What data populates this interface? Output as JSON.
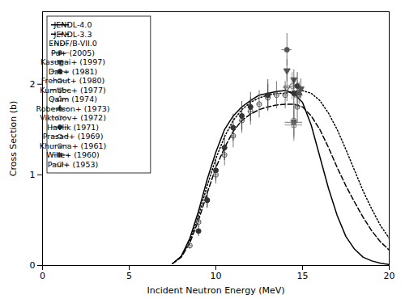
{
  "chart_data": {
    "type": "line",
    "xlabel": "Incident Neutron Energy (MeV)",
    "ylabel": "Cross Section (b)",
    "xlim": [
      0,
      20
    ],
    "ylim": [
      0,
      2.8
    ],
    "xticks": [
      0,
      5,
      10,
      15,
      20
    ],
    "yticks": [
      0,
      1,
      2
    ],
    "grid": false,
    "legend": "upper left",
    "series": [
      {
        "name": "JENDL-4.0",
        "type": "line",
        "color": "black",
        "line_style": "solid",
        "x": [
          7.5,
          8.0,
          8.5,
          9.0,
          9.5,
          10.0,
          10.5,
          11.0,
          11.5,
          12.0,
          12.5,
          13.0,
          13.5,
          14.0,
          14.5,
          15.0,
          15.5,
          16.0,
          16.5,
          17.0,
          17.5,
          18.0,
          18.5,
          19.0,
          19.5,
          20.0
        ],
        "values": [
          0.02,
          0.1,
          0.3,
          0.6,
          0.95,
          1.25,
          1.5,
          1.65,
          1.75,
          1.82,
          1.88,
          1.9,
          1.92,
          1.93,
          1.9,
          1.8,
          1.55,
          1.2,
          0.85,
          0.55,
          0.32,
          0.18,
          0.09,
          0.05,
          0.025,
          0.01
        ]
      },
      {
        "name": "JENDL-3.3",
        "type": "line",
        "color": "black",
        "line_style": "dashed",
        "x": [
          7.5,
          8.0,
          8.5,
          9.0,
          9.5,
          10.0,
          10.5,
          11.0,
          11.5,
          12.0,
          12.5,
          13.0,
          13.5,
          14.0,
          14.5,
          15.0,
          15.5,
          16.0,
          16.5,
          17.0,
          17.5,
          18.0,
          18.5,
          19.0,
          19.5,
          20.0
        ],
        "values": [
          0.02,
          0.09,
          0.25,
          0.5,
          0.8,
          1.08,
          1.3,
          1.48,
          1.6,
          1.67,
          1.72,
          1.75,
          1.77,
          1.78,
          1.78,
          1.75,
          1.65,
          1.5,
          1.3,
          1.08,
          0.88,
          0.7,
          0.53,
          0.38,
          0.26,
          0.17
        ]
      },
      {
        "name": "ENDF/B-VII.0",
        "type": "line",
        "color": "black",
        "line_style": "dotted",
        "x": [
          7.5,
          8.0,
          8.5,
          9.0,
          9.5,
          10.0,
          10.5,
          11.0,
          11.5,
          12.0,
          12.5,
          13.0,
          13.5,
          14.0,
          14.5,
          15.0,
          15.5,
          16.0,
          16.5,
          17.0,
          17.5,
          18.0,
          18.5,
          19.0,
          19.5,
          20.0
        ],
        "values": [
          0.02,
          0.1,
          0.28,
          0.55,
          0.88,
          1.18,
          1.42,
          1.6,
          1.72,
          1.8,
          1.85,
          1.88,
          1.9,
          1.9,
          1.92,
          1.93,
          1.9,
          1.82,
          1.68,
          1.5,
          1.28,
          1.05,
          0.82,
          0.62,
          0.44,
          0.3
        ]
      },
      {
        "name": "Pu+ (2005)",
        "type": "scatter",
        "marker": "circle",
        "color": "#555555",
        "x": [
          14.1
        ],
        "values": [
          2.38
        ],
        "xerr": [
          0.3
        ],
        "yerr": [
          0.18
        ]
      },
      {
        "name": "Kasugai+ (1997)",
        "type": "scatter",
        "marker": "triangle-down",
        "color": "#555555",
        "x": [
          14.1,
          14.5,
          14.9
        ],
        "values": [
          2.15,
          2.05,
          1.95
        ],
        "xerr": [
          0.1,
          0.1,
          0.1
        ],
        "yerr": [
          0.12,
          0.11,
          0.11
        ]
      },
      {
        "name": "Das+ (1981)",
        "type": "scatter",
        "marker": "circle",
        "color": "#333333",
        "x": [
          14.7
        ],
        "values": [
          1.98
        ],
        "xerr": [
          0.2
        ],
        "yerr": [
          0.15
        ]
      },
      {
        "name": "Frehaut+ (1980)",
        "type": "scatter",
        "marker": "circle-open",
        "color": "#555555",
        "x": [
          8.5,
          9.0,
          9.5,
          10.0,
          10.5,
          11.0,
          11.5,
          12.0,
          12.5,
          13.0,
          13.5,
          14.0
        ],
        "values": [
          0.22,
          0.48,
          0.72,
          1.0,
          1.22,
          1.43,
          1.6,
          1.7,
          1.78,
          1.85,
          1.88,
          1.88
        ],
        "xerr": [
          0.15,
          0.15,
          0.15,
          0.15,
          0.15,
          0.15,
          0.15,
          0.15,
          0.15,
          0.15,
          0.15,
          0.15
        ],
        "yerr": [
          0.04,
          0.06,
          0.08,
          0.1,
          0.12,
          0.13,
          0.14,
          0.15,
          0.15,
          0.15,
          0.15,
          0.15
        ]
      },
      {
        "name": "Kumabe+ (1977)",
        "type": "scatter",
        "marker": "triangle-down-open",
        "color": "#555555",
        "x": [
          14.1
        ],
        "values": [
          1.96
        ],
        "xerr": [
          0.2
        ],
        "yerr": [
          0.15
        ]
      },
      {
        "name": "Qaim (1974)",
        "type": "scatter",
        "marker": "triangle-up-open",
        "color": "#555555",
        "x": [
          14.7
        ],
        "values": [
          1.88
        ],
        "xerr": [
          0.2
        ],
        "yerr": [
          0.15
        ]
      },
      {
        "name": "Robertson+ (1973)",
        "type": "scatter",
        "marker": "triangle-up",
        "color": "#555555",
        "x": [
          14.8
        ],
        "values": [
          1.9
        ],
        "xerr": [
          0.2
        ],
        "yerr": [
          0.12
        ]
      },
      {
        "name": "Viktorov+ (1972)",
        "type": "scatter",
        "marker": "circle-open",
        "color": "#777777",
        "x": [
          14.4
        ],
        "values": [
          1.98
        ],
        "xerr": [
          0.2
        ],
        "yerr": [
          0.15
        ]
      },
      {
        "name": "Havlik (1971)",
        "type": "scatter",
        "marker": "circle",
        "color": "#333333",
        "x": [
          9.0,
          9.5,
          10.0,
          10.5,
          11.0,
          11.5,
          12.0,
          13.0,
          14.5
        ],
        "values": [
          0.38,
          0.72,
          1.05,
          1.3,
          1.52,
          1.65,
          1.75,
          1.88,
          1.9
        ],
        "xerr": [
          0.15,
          0.15,
          0.15,
          0.15,
          0.15,
          0.15,
          0.15,
          0.15,
          0.2
        ],
        "yerr": [
          0.06,
          0.09,
          0.12,
          0.14,
          0.15,
          0.16,
          0.16,
          0.17,
          0.17
        ]
      },
      {
        "name": "Prasad+ (1969)",
        "type": "scatter",
        "marker": "circle-open",
        "color": "#555555",
        "x": [
          14.7
        ],
        "values": [
          1.75
        ],
        "xerr": [
          0.2
        ],
        "yerr": [
          0.18
        ]
      },
      {
        "name": "Khurana+ (1961)",
        "type": "scatter",
        "marker": "circle-open",
        "color": "#777777",
        "x": [
          14.5
        ],
        "values": [
          1.6
        ],
        "xerr": [
          0.2
        ],
        "yerr": [
          0.2
        ]
      },
      {
        "name": "Wille+ (1960)",
        "type": "scatter",
        "marker": "square",
        "color": "#555555",
        "x": [
          14.5
        ],
        "values": [
          1.58
        ],
        "xerr": [
          0.5
        ],
        "yerr": [
          0.15
        ]
      },
      {
        "name": "Paul+ (1953)",
        "type": "scatter",
        "marker": "square-open",
        "color": "#777777",
        "x": [
          14.5
        ],
        "values": [
          1.55
        ],
        "xerr": [
          0.5
        ],
        "yerr": [
          0.18
        ]
      }
    ]
  }
}
